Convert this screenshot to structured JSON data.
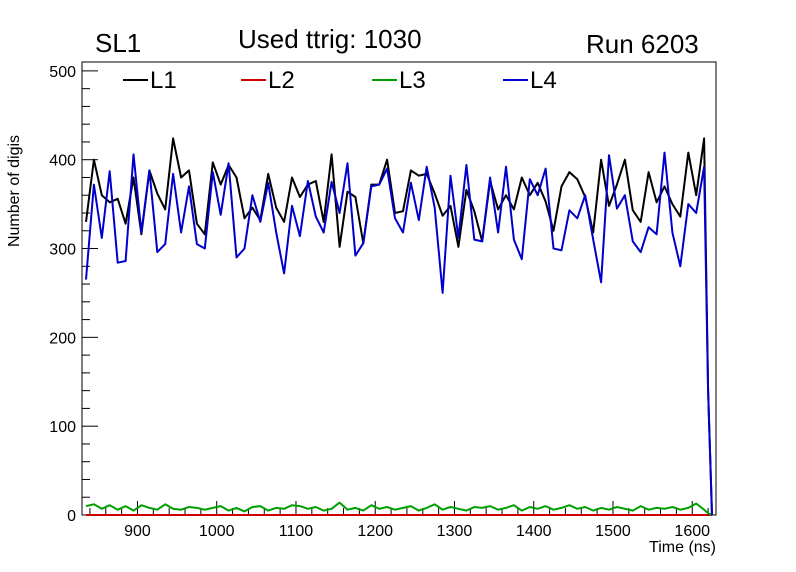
{
  "header": {
    "left": "SL1",
    "center": "Used ttrig: 1030",
    "right": "Run 6203"
  },
  "chart_data": {
    "type": "line",
    "title": "Used ttrig: 1030",
    "xlabel": "Time (ns)",
    "ylabel": "Number of digis",
    "xlim": [
      830,
      1630
    ],
    "ylim": [
      0,
      510
    ],
    "xticks": [
      900,
      1000,
      1100,
      1200,
      1300,
      1400,
      1500,
      1600
    ],
    "yticks": [
      0,
      100,
      200,
      300,
      400,
      500
    ],
    "legend": {
      "position": "top",
      "entries": [
        "L1",
        "L2",
        "L3",
        "L4"
      ]
    },
    "x": [
      835,
      845,
      855,
      865,
      875,
      885,
      895,
      905,
      915,
      925,
      935,
      945,
      955,
      965,
      975,
      985,
      995,
      1005,
      1015,
      1025,
      1035,
      1045,
      1055,
      1065,
      1075,
      1085,
      1095,
      1105,
      1115,
      1125,
      1135,
      1145,
      1155,
      1165,
      1175,
      1185,
      1195,
      1205,
      1215,
      1225,
      1235,
      1245,
      1255,
      1265,
      1275,
      1285,
      1295,
      1305,
      1315,
      1325,
      1335,
      1345,
      1355,
      1365,
      1375,
      1385,
      1395,
      1405,
      1415,
      1425,
      1435,
      1445,
      1455,
      1465,
      1475,
      1485,
      1495,
      1505,
      1515,
      1525,
      1535,
      1545,
      1555,
      1565,
      1575,
      1585,
      1595,
      1605,
      1615,
      1620,
      1625
    ],
    "series": [
      {
        "name": "L1",
        "color": "#000000",
        "values": [
          330,
          400,
          360,
          352,
          356,
          328,
          380,
          316,
          388,
          362,
          344,
          424,
          380,
          388,
          328,
          316,
          397,
          372,
          394,
          380,
          334,
          346,
          332,
          384,
          346,
          330,
          380,
          358,
          372,
          376,
          330,
          406,
          302,
          364,
          358,
          306,
          372,
          372,
          400,
          340,
          342,
          388,
          382,
          384,
          362,
          337,
          348,
          302,
          366,
          342,
          308,
          376,
          344,
          360,
          344,
          380,
          360,
          374,
          353,
          320,
          370,
          386,
          378,
          358,
          318,
          400,
          348,
          372,
          400,
          343,
          330,
          386,
          352,
          370,
          350,
          336,
          408,
          360,
          424,
          140,
          0
        ]
      },
      {
        "name": "L2",
        "color": "#cc0000",
        "values": [
          0,
          0,
          0,
          0,
          0,
          0,
          0,
          0,
          0,
          0,
          0,
          0,
          0,
          0,
          0,
          0,
          0,
          0,
          0,
          0,
          0,
          0,
          0,
          0,
          0,
          0,
          0,
          0,
          0,
          0,
          0,
          0,
          0,
          0,
          0,
          0,
          0,
          0,
          0,
          0,
          0,
          0,
          0,
          0,
          0,
          0,
          0,
          0,
          0,
          0,
          0,
          0,
          0,
          0,
          0,
          0,
          0,
          0,
          0,
          0,
          0,
          0,
          0,
          0,
          0,
          0,
          0,
          0,
          0,
          0,
          0,
          0,
          0,
          0,
          0,
          0,
          0,
          0,
          0,
          0,
          0
        ]
      },
      {
        "name": "L3",
        "color": "#00a000",
        "values": [
          10,
          12,
          7,
          11,
          6,
          10,
          5,
          11,
          8,
          6,
          12,
          7,
          6,
          9,
          8,
          6,
          8,
          10,
          5,
          8,
          4,
          9,
          10,
          5,
          8,
          7,
          11,
          10,
          7,
          9,
          5,
          7,
          14,
          6,
          8,
          5,
          11,
          7,
          9,
          6,
          8,
          10,
          5,
          8,
          12,
          6,
          9,
          7,
          5,
          9,
          8,
          10,
          6,
          8,
          11,
          5,
          9,
          7,
          10,
          6,
          8,
          11,
          7,
          9,
          5,
          8,
          6,
          9,
          7,
          5,
          10,
          6,
          8,
          7,
          9,
          6,
          8,
          13,
          6,
          2,
          0
        ]
      },
      {
        "name": "L4",
        "color": "#0000cc",
        "values": [
          265,
          372,
          312,
          387,
          284,
          286,
          406,
          318,
          388,
          296,
          305,
          384,
          318,
          370,
          305,
          300,
          386,
          338,
          396,
          290,
          300,
          360,
          330,
          374,
          318,
          272,
          348,
          314,
          376,
          336,
          318,
          375,
          340,
          396,
          292,
          306,
          370,
          372,
          390,
          334,
          318,
          374,
          332,
          392,
          346,
          250,
          382,
          312,
          394,
          310,
          308,
          380,
          318,
          392,
          310,
          288,
          378,
          360,
          390,
          300,
          298,
          343,
          334,
          360,
          310,
          262,
          405,
          345,
          360,
          308,
          296,
          324,
          316,
          408,
          318,
          280,
          350,
          340,
          392,
          140,
          0
        ]
      }
    ]
  }
}
